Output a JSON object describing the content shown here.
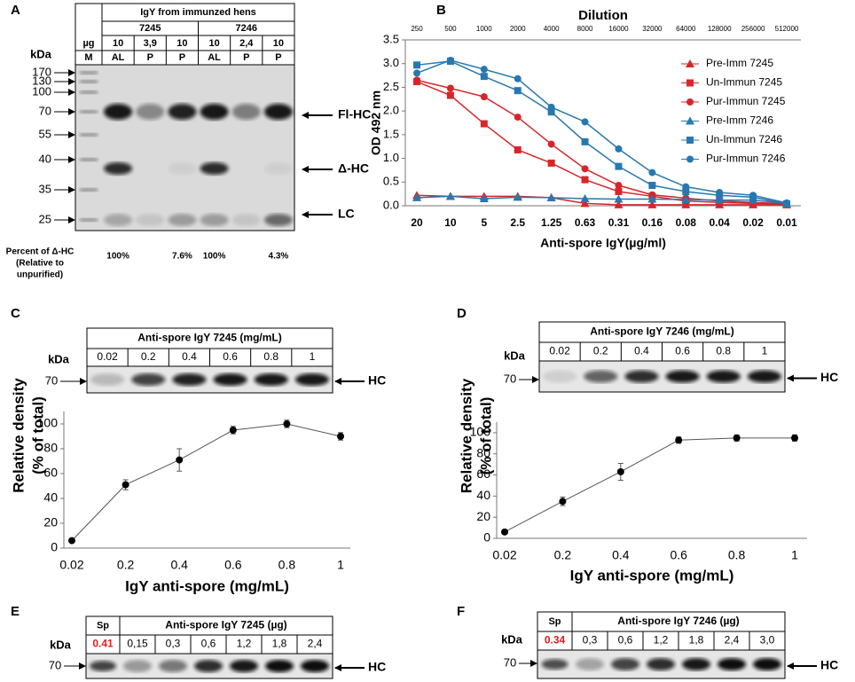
{
  "panel_labels": [
    "A",
    "B",
    "C",
    "D",
    "E",
    "F"
  ],
  "gel": {
    "title": "IgY from immunzed hens",
    "hens": [
      "7245",
      "7246"
    ],
    "unit_label": "µg",
    "marker_lane": "M",
    "amounts": [
      "10",
      "3,9",
      "10",
      "10",
      "2,4",
      "10"
    ],
    "types": [
      "AL",
      "P",
      "P",
      "AL",
      "P",
      "P"
    ],
    "kda_label": "kDa",
    "markers": [
      170,
      130,
      100,
      70,
      55,
      40,
      35,
      25
    ],
    "bands": [
      "Fl-HC",
      "Δ-HC",
      "LC"
    ],
    "percent_label": [
      "Percent of Δ-HC",
      "(Relative to",
      "unpurified)"
    ],
    "percents": [
      "100%",
      "7.6%",
      "100%",
      "4.3%"
    ]
  },
  "chart_data": [
    {
      "type": "line",
      "title": "Dilution",
      "top_categories": [
        "250",
        "500",
        "1000",
        "2000",
        "4000",
        "8000",
        "16000",
        "32000",
        "64000",
        "128000",
        "256000",
        "512000"
      ],
      "categories": [
        "20",
        "10",
        "5",
        "2.5",
        "1.25",
        "0.63",
        "0.31",
        "0.16",
        "0.08",
        "0.04",
        "0.02",
        "0.01"
      ],
      "xlabel": "Anti-spore  IgY(µg/ml)",
      "ylabel": "OD 492 nm",
      "ylim": [
        0,
        3.5
      ],
      "yticks": [
        {
          "value": 0,
          "label": "0.0"
        },
        0.5,
        {
          "value": 1,
          "label": "1.0"
        },
        1.5,
        {
          "value": 2,
          "label": "2.0"
        },
        2.5,
        {
          "value": 3,
          "label": "3.0"
        },
        3.5
      ],
      "legend": "upper right",
      "series": [
        {
          "name": "Pre-Imm 7245",
          "color": "#d7262b",
          "marker": "triangle",
          "values": [
            0.22,
            0.2,
            0.2,
            0.2,
            0.17,
            0.05,
            0.02,
            0.02,
            0.02,
            0.02,
            0.02,
            0.02
          ]
        },
        {
          "name": "Un-Immun 7245",
          "color": "#d7262b",
          "marker": "square",
          "values": [
            2.62,
            2.33,
            1.73,
            1.18,
            0.9,
            0.55,
            0.3,
            0.2,
            0.1,
            0.07,
            0.05,
            0.03
          ]
        },
        {
          "name": "Pur-Immun 7245",
          "color": "#d7262b",
          "marker": "circle",
          "values": [
            2.65,
            2.48,
            2.3,
            1.87,
            1.3,
            0.78,
            0.43,
            0.23,
            0.16,
            0.1,
            0.07,
            0.04
          ]
        },
        {
          "name": "Pre-Imm 7246",
          "color": "#2878b0",
          "marker": "triangle",
          "values": [
            0.17,
            0.2,
            0.15,
            0.18,
            0.17,
            0.15,
            0.14,
            0.14,
            0.13,
            0.12,
            0.12,
            0.05
          ]
        },
        {
          "name": "Un-Immun 7246",
          "color": "#2878b0",
          "marker": "square",
          "values": [
            2.97,
            3.05,
            2.73,
            2.43,
            1.98,
            1.35,
            0.83,
            0.43,
            0.3,
            0.22,
            0.18,
            0.04
          ]
        },
        {
          "name": "Pur-Immun 7246",
          "color": "#2878b0",
          "marker": "circle",
          "values": [
            2.8,
            3.07,
            2.88,
            2.68,
            2.08,
            1.77,
            1.2,
            0.7,
            0.4,
            0.28,
            0.22,
            0.06
          ]
        }
      ]
    },
    {
      "type": "line",
      "categories": [
        "0.02",
        "0.2",
        "0.4",
        "0.6",
        "0.8",
        "1"
      ],
      "values": [
        6,
        51,
        71,
        95,
        100,
        90
      ],
      "errors": [
        0,
        4,
        9,
        3,
        3,
        3
      ],
      "ylim": [
        0,
        110
      ],
      "yticks": [
        0,
        20,
        40,
        60,
        80,
        100
      ],
      "xlabel": "IgY anti-spore (mg/mL)",
      "ylabel": [
        "Relative density",
        "(% of total)"
      ],
      "color": "#555555",
      "marker_color": "#000000"
    },
    {
      "type": "line",
      "categories": [
        "0.02",
        "0.2",
        "0.4",
        "0.6",
        "0.8",
        "1"
      ],
      "values": [
        6,
        35,
        63,
        93,
        95,
        95
      ],
      "errors": [
        0,
        4,
        8,
        3,
        3,
        3
      ],
      "ylim": [
        0,
        110
      ],
      "yticks": [
        0,
        20,
        40,
        60,
        80,
        100
      ],
      "xlabel": "IgY anti-spore (mg/mL)",
      "ylabel": [
        "Relative density",
        "(% of total)"
      ],
      "color": "#555555",
      "marker_color": "#000000"
    }
  ],
  "blots": [
    {
      "title": "Anti-spore IgY 7245 (mg/mL)",
      "lanes": [
        "0.02",
        "0.2",
        "0.4",
        "0.6",
        "0.8",
        "1"
      ],
      "kda_label": "kDa",
      "marker": 70,
      "band": "HC"
    },
    {
      "title": "Anti-spore IgY 7246 (mg/mL)",
      "lanes": [
        "0.02",
        "0.2",
        "0.4",
        "0.6",
        "0.8",
        "1"
      ],
      "kda_label": "kDa",
      "marker": 70,
      "band": "HC"
    },
    {
      "title": "Anti-spore IgY 7245 (µg)",
      "sp_label": "Sp",
      "sp_value": "0.41",
      "lanes": [
        "0,15",
        "0,3",
        "0,6",
        "1,2",
        "1,8",
        "2,4"
      ],
      "kda_label": "kDa",
      "marker": 70,
      "band": "HC"
    },
    {
      "title": "Anti-spore IgY 7246 (µg)",
      "sp_label": "Sp",
      "sp_value": "0.34",
      "lanes": [
        "0,3",
        "0,6",
        "1,2",
        "1,8",
        "2,4",
        "3,0"
      ],
      "kda_label": "kDa",
      "marker": 70,
      "band": "HC"
    }
  ]
}
